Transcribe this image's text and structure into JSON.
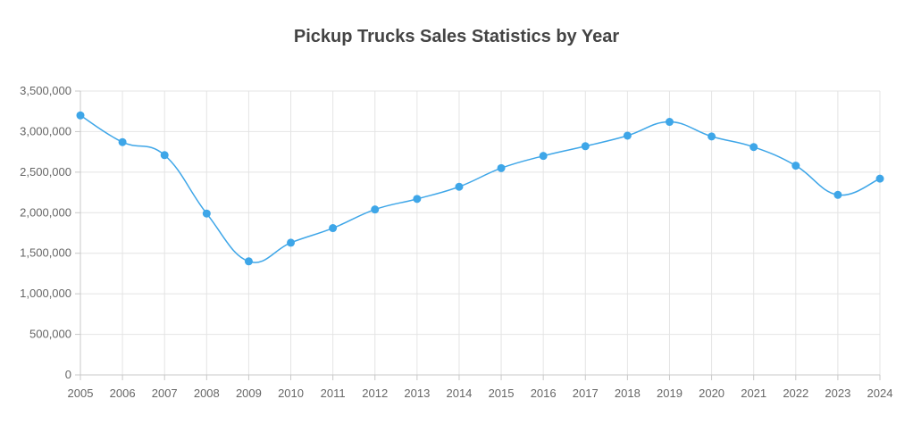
{
  "chart_data": {
    "type": "line",
    "title": "Pickup Trucks Sales Statistics by Year",
    "xlabel": "",
    "ylabel": "",
    "x": [
      "2005",
      "2006",
      "2007",
      "2008",
      "2009",
      "2010",
      "2011",
      "2012",
      "2013",
      "2014",
      "2015",
      "2016",
      "2017",
      "2018",
      "2019",
      "2020",
      "2021",
      "2022",
      "2023",
      "2024"
    ],
    "series": [
      {
        "values": [
          3200000,
          2870000,
          2710000,
          1990000,
          1400000,
          1630000,
          1810000,
          2040000,
          2170000,
          2320000,
          2550000,
          2700000,
          2820000,
          2950000,
          3120000,
          2940000,
          2810000,
          2580000,
          2220000,
          2420000
        ],
        "color": "#3ea6e8"
      }
    ],
    "ylim": [
      0,
      3500000
    ],
    "yticks": [
      0,
      500000,
      1000000,
      1500000,
      2000000,
      2500000,
      3000000,
      3500000
    ],
    "ytick_labels": [
      "0",
      "500,000",
      "1,000,000",
      "1,500,000",
      "2,000,000",
      "2,500,000",
      "3,000,000",
      "3,500,000"
    ],
    "grid": true,
    "legend": "none"
  }
}
